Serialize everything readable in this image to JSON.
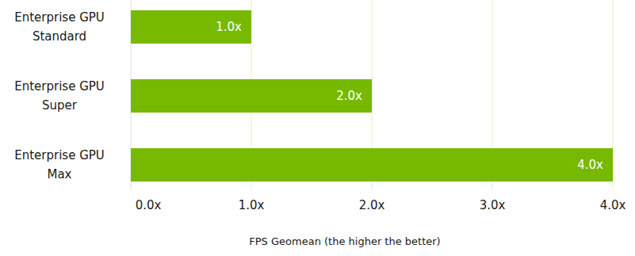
{
  "chart_data": {
    "type": "bar",
    "orientation": "horizontal",
    "categories": [
      "Enterprise GPU Standard",
      "Enterprise GPU Super",
      "Enterprise GPU Max"
    ],
    "values": [
      1.0,
      2.0,
      4.0
    ],
    "value_labels": [
      "1.0x",
      "2.0x",
      "4.0x"
    ],
    "data_labels": true,
    "color": "#76b900",
    "xlabel": "FPS Geomean (the higher the better)",
    "xlim": [
      0,
      4
    ],
    "xticks": [
      {
        "value": 0,
        "label": "0.0x"
      },
      {
        "value": 1,
        "label": "1.0x"
      },
      {
        "value": 2,
        "label": "2.0x"
      },
      {
        "value": 3,
        "label": "3.0x"
      },
      {
        "value": 4,
        "label": "4.0x"
      }
    ],
    "grid": true
  }
}
